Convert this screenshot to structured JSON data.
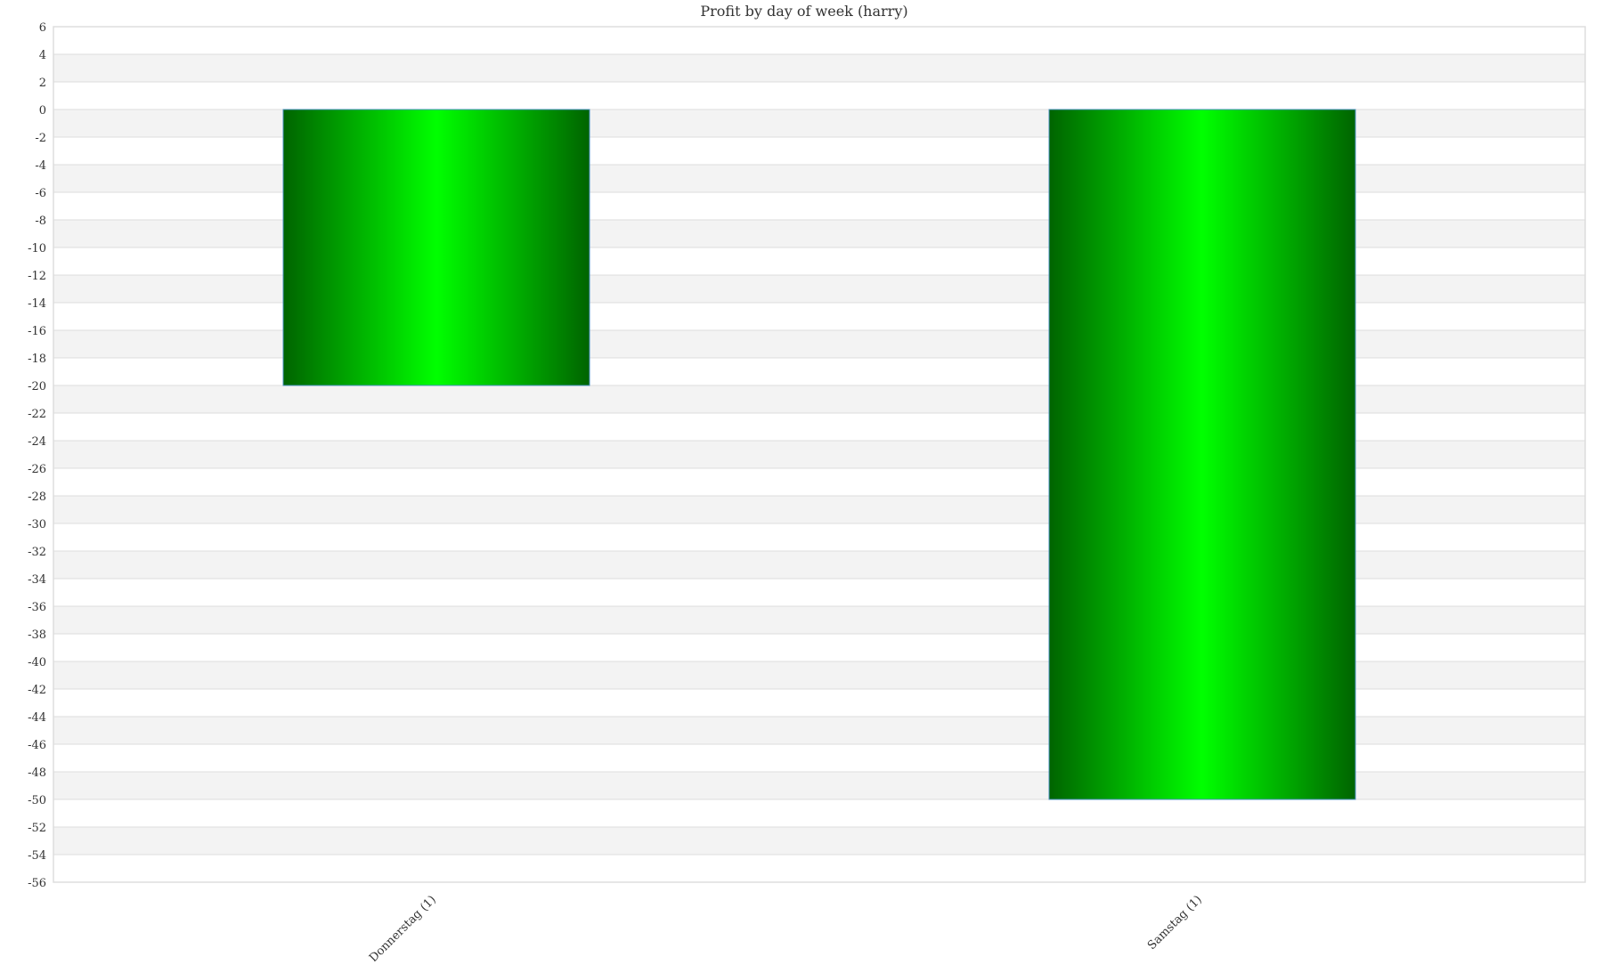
{
  "chart_data": {
    "type": "bar",
    "title": "Profit by day of week  (harry)",
    "categories": [
      "Donnerstag (1)",
      "Samstag (1)"
    ],
    "values": [
      -20,
      -50
    ],
    "ylim": [
      -56,
      6
    ],
    "ytick_step": 2,
    "xlabel": "",
    "ylabel": "",
    "grid": true,
    "legend": "none",
    "colors": {
      "bar_edge": "#006400",
      "bar_center": "#00ff00",
      "bar_border": "#4a90c0",
      "band": "#f3f3f3",
      "grid": "#dddddd"
    }
  }
}
